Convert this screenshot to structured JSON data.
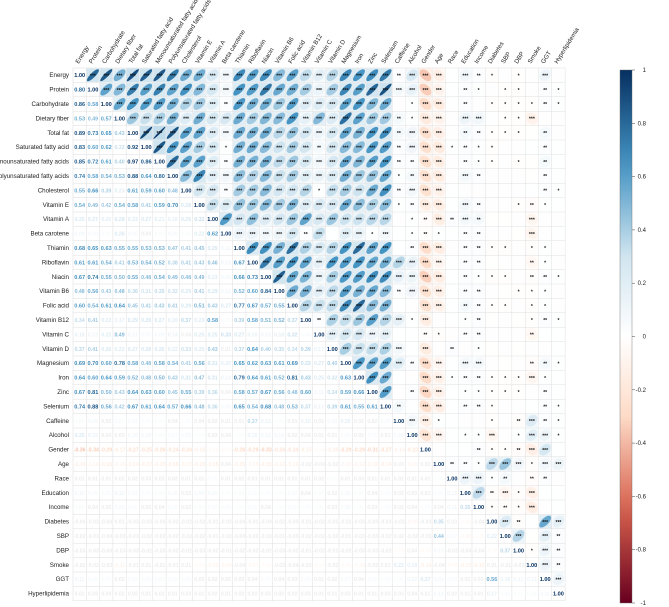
{
  "chart_data": {
    "type": "heatmap",
    "subtype": "correlation-matrix (mixed: numbers lower triangle, ellipses + significance stars upper triangle)",
    "variables": [
      "Energy",
      "Protein",
      "Carbohydrate",
      "Dietary fiber",
      "Total fat",
      "Saturated fatty acid",
      "Monounsaturated fatty acids",
      "Polyunsaturated fatty acids",
      "Cholesterol",
      "Vitamin E",
      "Vitamin A",
      "Beta carotene",
      "Thiamin",
      "Riboflavin",
      "Niacin",
      "Vitamin B6",
      "Folic acid",
      "Vitamin B12",
      "Vitamin C",
      "Vitamin D",
      "Magnesium",
      "Iron",
      "Zinc",
      "Selenium",
      "Caffeine",
      "Alcohol",
      "Gender",
      "Age",
      "Race",
      "Education",
      "Income",
      "Diabetes",
      "SBP",
      "DBP",
      "Smoke",
      "GGT",
      "Hyperlipidemia"
    ],
    "lower_values": [
      [
        1.0
      ],
      [
        0.8,
        1.0
      ],
      [
        0.86,
        0.58,
        1.0
      ],
      [
        0.53,
        0.49,
        0.57,
        1.0
      ],
      [
        0.89,
        0.73,
        0.65,
        0.43,
        1.0
      ],
      [
        0.83,
        0.6,
        0.62,
        0.32,
        0.92,
        1.0
      ],
      [
        0.85,
        0.72,
        0.61,
        0.4,
        0.97,
        0.86,
        1.0
      ],
      [
        0.74,
        0.58,
        0.54,
        0.53,
        0.88,
        0.64,
        0.8,
        1.0
      ],
      [
        0.55,
        0.66,
        0.39,
        0.23,
        0.61,
        0.59,
        0.6,
        0.48,
        1.0
      ],
      [
        0.54,
        0.49,
        0.42,
        0.54,
        0.58,
        0.41,
        0.59,
        0.7,
        0.28,
        1.0
      ],
      [
        0.25,
        0.27,
        0.2,
        0.28,
        0.23,
        0.27,
        0.21,
        0.18,
        0.26,
        0.32,
        1.0
      ],
      [
        0.09,
        0.08,
        0.05,
        0.26,
        0.08,
        0.04,
        0.06,
        0.09,
        0.05,
        0.22,
        0.62,
        1.0
      ],
      [
        0.68,
        0.65,
        0.63,
        0.55,
        0.55,
        0.53,
        0.53,
        0.47,
        0.41,
        0.45,
        0.29,
        0.11,
        1.0
      ],
      [
        0.61,
        0.61,
        0.54,
        0.41,
        0.53,
        0.54,
        0.52,
        0.38,
        0.41,
        0.43,
        0.46,
        0.13,
        0.67,
        1.0
      ],
      [
        0.67,
        0.74,
        0.55,
        0.5,
        0.55,
        0.48,
        0.54,
        0.49,
        0.48,
        0.49,
        0.23,
        0.09,
        0.66,
        0.73,
        1.0
      ],
      [
        0.48,
        0.56,
        0.43,
        0.48,
        0.36,
        0.31,
        0.35,
        0.32,
        0.29,
        0.41,
        0.29,
        0.12,
        0.52,
        0.6,
        0.84,
        1.0
      ],
      [
        0.6,
        0.54,
        0.61,
        0.64,
        0.45,
        0.41,
        0.43,
        0.41,
        0.29,
        0.51,
        0.43,
        0.27,
        0.77,
        0.67,
        0.57,
        0.55,
        1.0
      ],
      [
        0.34,
        0.41,
        0.22,
        0.17,
        0.29,
        0.28,
        0.27,
        0.2,
        0.37,
        0.23,
        0.58,
        0.05,
        0.39,
        0.58,
        0.51,
        0.52,
        0.37,
        1.0
      ],
      [
        0.18,
        0.13,
        0.22,
        0.49,
        0.11,
        0.07,
        0.09,
        0.14,
        0.04,
        0.25,
        0.25,
        0.33,
        0.27,
        0.16,
        0.13,
        0.18,
        0.32,
        0.06,
        1.0
      ],
      [
        0.37,
        0.41,
        0.26,
        0.22,
        0.27,
        0.28,
        0.26,
        0.22,
        0.33,
        0.25,
        0.43,
        0.01,
        0.37,
        0.64,
        0.4,
        0.35,
        0.34,
        0.39,
        0.17,
        1.0
      ],
      [
        0.69,
        0.7,
        0.6,
        0.78,
        0.58,
        0.48,
        0.58,
        0.54,
        0.41,
        0.56,
        0.31,
        0.2,
        0.65,
        0.62,
        0.63,
        0.61,
        0.69,
        0.33,
        0.27,
        0.4,
        1.0
      ],
      [
        0.64,
        0.6,
        0.64,
        0.59,
        0.52,
        0.48,
        0.5,
        0.43,
        0.31,
        0.47,
        0.31,
        0.14,
        0.79,
        0.64,
        0.61,
        0.52,
        0.81,
        0.43,
        0.25,
        0.32,
        0.63,
        1.0
      ],
      [
        0.67,
        0.81,
        0.5,
        0.43,
        0.64,
        0.63,
        0.6,
        0.45,
        0.55,
        0.39,
        0.36,
        0.04,
        0.58,
        0.57,
        0.67,
        0.56,
        0.48,
        0.6,
        0.11,
        0.34,
        0.59,
        0.66,
        1.0
      ],
      [
        0.74,
        0.88,
        0.56,
        0.42,
        0.67,
        0.61,
        0.64,
        0.57,
        0.66,
        0.48,
        0.36,
        0.08,
        0.65,
        0.54,
        0.68,
        0.48,
        0.53,
        0.37,
        0.17,
        0.39,
        0.61,
        0.55,
        0.61,
        1.0
      ],
      [
        0.06,
        0.08,
        0.02,
        0.07,
        0.07,
        0.05,
        0.05,
        0.04,
        0.05,
        0.04,
        0.02,
        0.01,
        0.01,
        0.37,
        0.15,
        0.05,
        0.01,
        0.16,
        0.01,
        0.08,
        0.2,
        0.01,
        0.02,
        0.07,
        1.0
      ],
      [
        0.25,
        0.15,
        0.04,
        0.03,
        0.1,
        0.1,
        0.06,
        0.07,
        0.08,
        0.05,
        0.03,
        0.04,
        0.05,
        0.15,
        0.12,
        0.1,
        0.02,
        0.04,
        0.01,
        0.01,
        0.06,
        0.02,
        0.05,
        0.01,
        0.08,
        1.0
      ],
      [
        -0.36,
        -0.34,
        -0.29,
        -0.17,
        -0.27,
        -0.25,
        -0.26,
        -0.24,
        -0.24,
        -0.15,
        -0.06,
        -0.05,
        -0.28,
        -0.29,
        -0.33,
        -0.24,
        -0.24,
        -0.15,
        -0.05,
        -0.16,
        -0.29,
        -0.29,
        -0.31,
        -0.27,
        -0.13,
        -0.22,
        1.0
      ],
      [
        -0.14,
        -0.1,
        -0.16,
        -0.1,
        -0.14,
        -0.17,
        -0.15,
        -0.16,
        -0.12,
        -0.15,
        -0.15,
        0.04,
        -0.15,
        -0.08,
        -0.15,
        -0.13,
        -0.12,
        -0.02,
        -0.04,
        -0.02,
        -0.08,
        -0.12,
        -0.12,
        -0.14,
        0.03,
        -0.08,
        0.02,
        1.0
      ],
      [
        0.01,
        0.01,
        0.01,
        0.02,
        0.02,
        0.03,
        0.02,
        0.02,
        0.01,
        0.01,
        0.05,
        0.01,
        0.02,
        0.01,
        0.01,
        0.01,
        0.01,
        0.01,
        0.02,
        0.05,
        0.01,
        0.03,
        0.01,
        0.01,
        0.01,
        0.01,
        0.01,
        0.05,
        1.0
      ],
      [
        0.1,
        0.06,
        0.06,
        0.12,
        0.07,
        0.05,
        0.06,
        0.08,
        0.02,
        0.09,
        0.08,
        0.05,
        0.06,
        0.05,
        0.05,
        0.05,
        0.07,
        0.04,
        0.06,
        0.02,
        0.08,
        0.06,
        0.04,
        0.05,
        0.02,
        0.03,
        0.01,
        0.05,
        0.11,
        1.0
      ],
      [
        0.06,
        0.04,
        0.02,
        0.09,
        0.05,
        0.03,
        0.04,
        0.06,
        0.02,
        0.06,
        0.07,
        0.06,
        0.05,
        0.05,
        0.04,
        0.05,
        0.05,
        0.05,
        0.05,
        0.03,
        0.08,
        0.05,
        0.03,
        0.05,
        0.02,
        0.04,
        0.05,
        0.04,
        0.11,
        0.35,
        1.0
      ],
      [
        -0.04,
        -0.02,
        -0.04,
        0.01,
        -0.03,
        -0.03,
        -0.03,
        -0.02,
        -0.02,
        -0.02,
        -0.01,
        -0.02,
        -0.04,
        -0.01,
        -0.04,
        -0.02,
        -0.03,
        -0.01,
        -0.02,
        -0.01,
        -0.02,
        -0.03,
        -0.03,
        -0.03,
        -0.03,
        -0.08,
        -0.03,
        0.35,
        0.03,
        -0.05,
        -0.04,
        1.0
      ],
      [
        -0.02,
        -0.03,
        -0.04,
        -0.03,
        -0.03,
        -0.02,
        -0.02,
        -0.02,
        -0.02,
        -0.02,
        -0.01,
        -0.02,
        -0.04,
        -0.02,
        -0.03,
        -0.01,
        -0.03,
        -0.02,
        -0.02,
        -0.02,
        -0.01,
        -0.03,
        -0.03,
        -0.02,
        0.02,
        -0.02,
        -0.03,
        0.44,
        0.07,
        -0.08,
        -0.05,
        0.22,
        1.0
      ],
      [
        -0.03,
        -0.03,
        -0.03,
        -0.03,
        -0.03,
        -0.02,
        -0.03,
        -0.02,
        -0.02,
        -0.03,
        -0.02,
        -0.01,
        -0.02,
        -0.02,
        -0.02,
        -0.03,
        -0.02,
        -0.01,
        -0.02,
        -0.01,
        -0.02,
        -0.03,
        -0.03,
        -0.02,
        -0.05,
        0.04,
        -0.06,
        0.1,
        -0.02,
        -0.04,
        -0.04,
        -0.05,
        0.37,
        1.0
      ],
      [
        -0.02,
        -0.02,
        -0.03,
        -0.11,
        -0.01,
        0.01,
        -0.01,
        -0.01,
        0.01,
        -0.06,
        -0.08,
        -0.09,
        -0.04,
        -0.07,
        -0.05,
        -0.03,
        -0.04,
        -0.03,
        -0.07,
        -0.02,
        -0.06,
        -0.08,
        -0.02,
        0.01,
        0.22,
        0.18,
        -0.14,
        -0.04,
        -0.06,
        -0.13,
        -0.15,
        0.01,
        -0.01,
        -0.03,
        1.0
      ],
      [
        0.11,
        0.06,
        0.05,
        0.02,
        0.07,
        0.06,
        0.07,
        0.05,
        0.06,
        0.03,
        0.02,
        0.02,
        0.03,
        0.04,
        0.05,
        0.04,
        0.03,
        0.06,
        0.01,
        0.02,
        0.07,
        0.04,
        0.06,
        0.05,
        0.05,
        0.12,
        0.27,
        0.09,
        0.06,
        0.01,
        0.02,
        0.56,
        0.16,
        0.11,
        0.11,
        1.0
      ],
      [
        0.02,
        0.03,
        0.04,
        0.02,
        0.02,
        0.01,
        0.01,
        0.01,
        0.03,
        0.01,
        0.02,
        0.01,
        0.02,
        0.02,
        0.03,
        0.02,
        0.02,
        0.03,
        0.01,
        0.01,
        0.03,
        0.01,
        0.01,
        0.03,
        0.03,
        0.04,
        0.01,
        0.12,
        0.02,
        0.01,
        0.01,
        0.17,
        0.06,
        0.05,
        0.06,
        0.11,
        1.0
      ]
    ],
    "colorbar": {
      "range": [
        -1,
        1
      ],
      "ticks": [
        "1",
        "0.8",
        "0.6",
        "0.4",
        "0.2",
        "0",
        "-0.2",
        "-0.4",
        "-0.6",
        "-0.8",
        "-1"
      ],
      "colors": {
        "neg_strong": "#67001f",
        "neg_mid": "#d6604d",
        "neg_light": "#fddbc7",
        "zero": "#ffffff",
        "pos_light": "#d1e5f0",
        "pos_mid": "#4393c3",
        "pos_strong": "#053061"
      }
    },
    "legend_placement": "right",
    "grid": true
  }
}
